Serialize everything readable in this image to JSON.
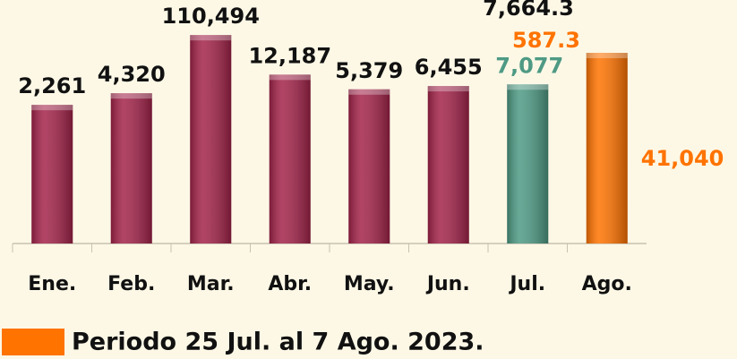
{
  "chart_data": {
    "type": "bar",
    "categories": [
      "Ene.",
      "Feb.",
      "Mar.",
      "Abr.",
      "May.",
      "Jun.",
      "Jul.",
      "Ago."
    ],
    "values": [
      2261,
      4320,
      110494,
      12187,
      5379,
      6455,
      7077,
      41040
    ],
    "value_labels": [
      "2,261",
      "4,320",
      "110,494",
      "12,187",
      "5,379",
      "6,455",
      "7,077",
      "41,040"
    ],
    "colors": [
      "#a3234a",
      "#a3234a",
      "#a3234a",
      "#a3234a",
      "#a3234a",
      "#a3234a",
      "#4e9a84",
      "#ff7300"
    ],
    "label_colors": [
      "#111111",
      "#111111",
      "#111111",
      "#111111",
      "#111111",
      "#111111",
      "#4e9a84",
      "#ff7300"
    ],
    "log_scale": true,
    "ylim": [
      1,
      1000000
    ],
    "annotations": [
      "7,664.3",
      "587.3"
    ],
    "legend": {
      "label": "Periodo 25 Jul. al 7 Ago. 2023.",
      "color": "#ff7300"
    }
  }
}
